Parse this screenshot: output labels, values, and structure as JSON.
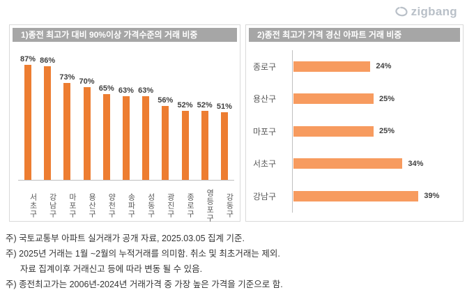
{
  "logo": {
    "text": "zigbang",
    "color": "#b9c0c8"
  },
  "chart_data": [
    {
      "type": "bar",
      "orientation": "vertical",
      "title": "1)종전 최고가 대비 90%이상 가격수준의 거래 비중",
      "categories": [
        "서초구",
        "강남구",
        "마포구",
        "용산구",
        "양천구",
        "송파구",
        "성동구",
        "광진구",
        "종로구",
        "영등포구",
        "강동구"
      ],
      "values": [
        87,
        86,
        73,
        70,
        65,
        63,
        63,
        56,
        52,
        52,
        51
      ],
      "unit": "%",
      "data_labels": true,
      "bar_color": "#ed7d31",
      "ylim": [
        0,
        100
      ],
      "grid": false,
      "legend": "none"
    },
    {
      "type": "bar",
      "orientation": "horizontal",
      "title": "2)종전 최고가 가격 경신 아파트 거래 비중",
      "categories": [
        "종로구",
        "용산구",
        "마포구",
        "서초구",
        "강남구"
      ],
      "values": [
        24,
        25,
        25,
        34,
        39
      ],
      "unit": "%",
      "data_labels": true,
      "bar_color": "#f79b5f",
      "xlim": [
        0,
        45
      ],
      "grid": false,
      "legend": "none"
    }
  ],
  "footnotes": [
    "주) 국토교통부 아파트 실거래가 공개 자료, 2025.03.05 집계 기준.",
    "주) 2025년 거래는 1월 ~2월의 누적거래를 의미함. 취소 및 최초거래는 제외.",
    "      자료 집계이후 거래신고 등에 따라 변동 될 수 있음.",
    "주) 종전최고가는 2006년-2024년 거래가격 중 가장 높은 가격을 기준으로 함."
  ]
}
